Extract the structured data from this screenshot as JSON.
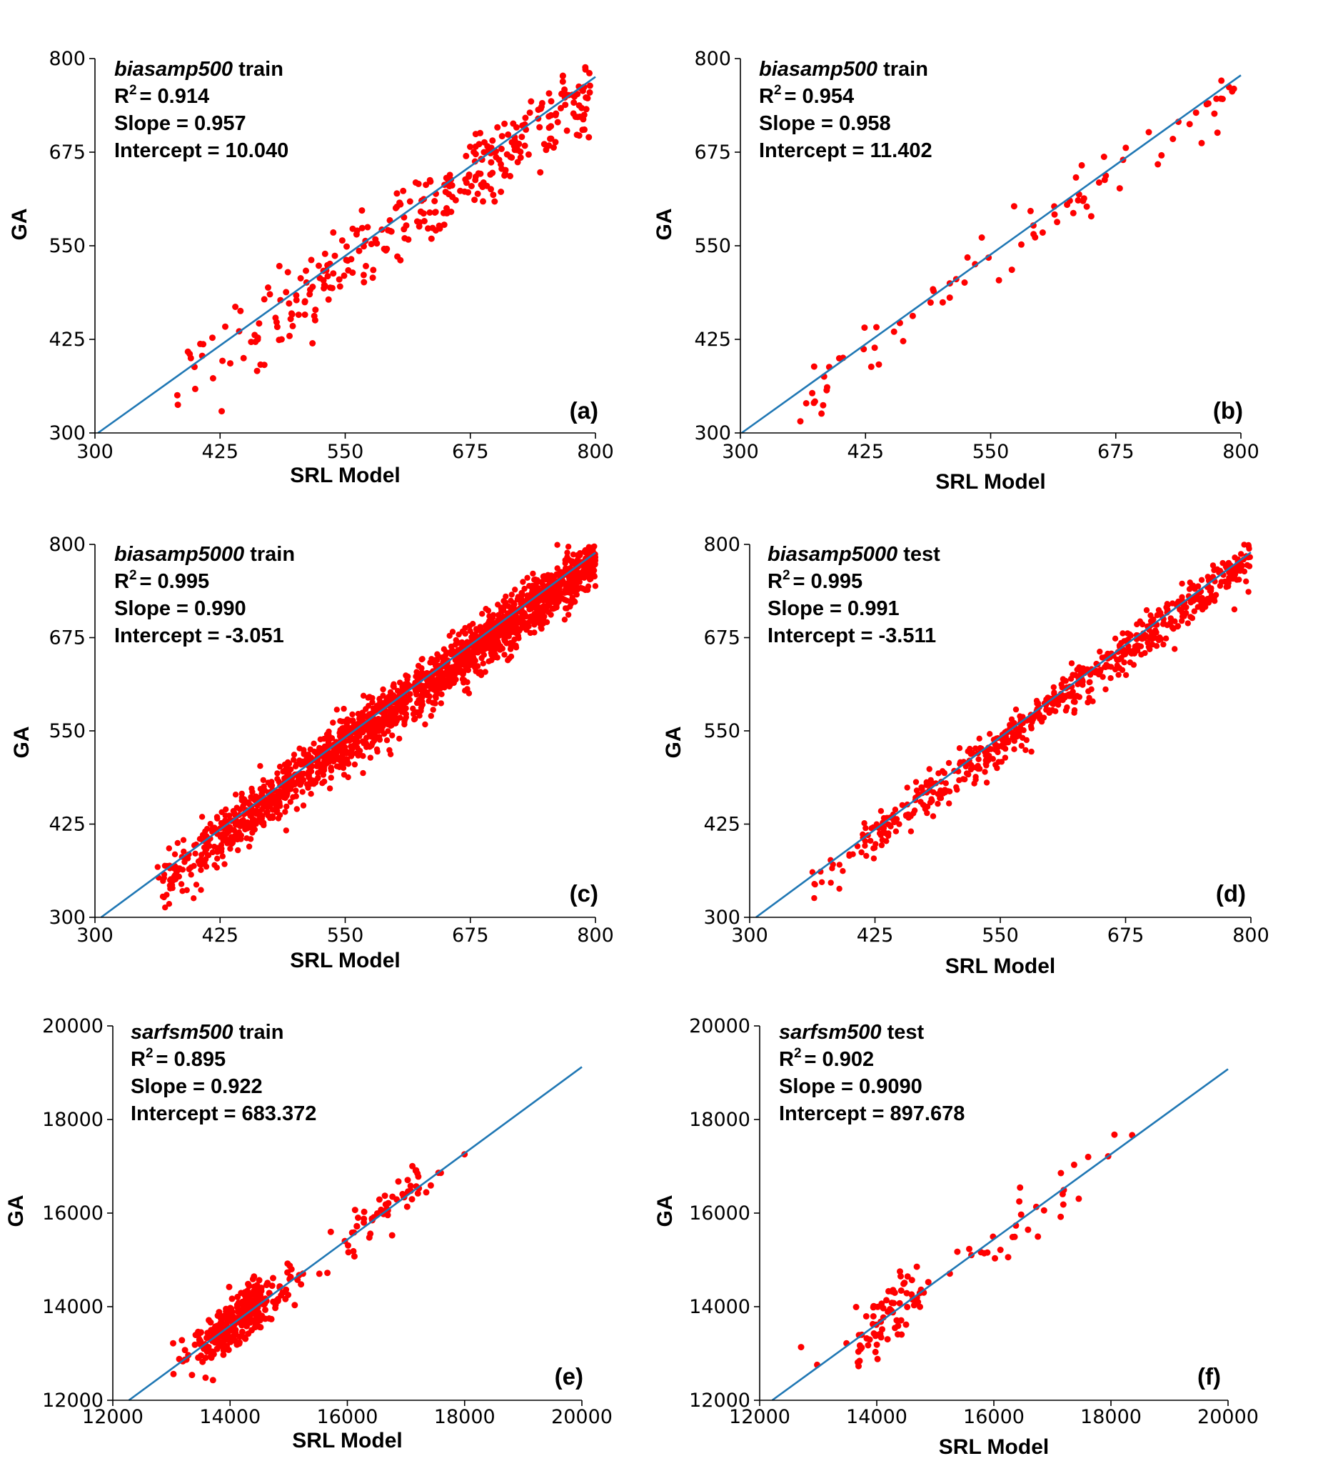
{
  "figure": {
    "point_color": "#ff0000",
    "fit_line_color": "#1f77b4",
    "axis_color": "#000000"
  },
  "chart_data": [
    {
      "panel": "(a)",
      "type": "scatter",
      "dataset": "biasamp500",
      "split": "train",
      "annotations": {
        "r2_prefix": "R",
        "r2_sup": "2",
        "r2": "= 0.914",
        "slope": "Slope = 0.957",
        "intercept": "Intercept = 10.040"
      },
      "xlabel": "SRL Model",
      "ylabel": "GA",
      "xlim": [
        300,
        800
      ],
      "ylim": [
        300,
        800
      ],
      "xticks": [
        "300",
        "425",
        "550",
        "675",
        "800"
      ],
      "yticks": [
        "300",
        "425",
        "550",
        "675",
        "800"
      ],
      "fit": {
        "slope": 0.957,
        "intercept": 10.04
      },
      "scatter": {
        "n": 320,
        "x_range": [
          380,
          795
        ],
        "noise": 22,
        "bias": -10,
        "seed": 11
      }
    },
    {
      "panel": "(b)",
      "type": "scatter",
      "dataset": "biasamp500",
      "split": "train",
      "annotations": {
        "r2_prefix": "R",
        "r2_sup": "2",
        "r2": "= 0.954",
        "slope": "Slope = 0.958",
        "intercept": "Intercept = 11.402"
      },
      "xlabel": "SRL Model",
      "ylabel": "GA",
      "xlim": [
        300,
        800
      ],
      "ylim": [
        300,
        800
      ],
      "xticks": [
        "300",
        "425",
        "550",
        "675",
        "800"
      ],
      "yticks": [
        "300",
        "425",
        "550",
        "675",
        "800"
      ],
      "fit": {
        "slope": 0.958,
        "intercept": 11.402
      },
      "scatter": {
        "n": 85,
        "x_range": [
          355,
          795
        ],
        "noise": 20,
        "bias": -5,
        "seed": 23
      }
    },
    {
      "panel": "(c)",
      "type": "scatter",
      "dataset": "biasamp5000",
      "split": "train",
      "annotations": {
        "r2_prefix": "R",
        "r2_sup": "2",
        "r2": "= 0.995",
        "slope": "Slope = 0.990",
        "intercept": "Intercept = -3.051"
      },
      "xlabel": "SRL Model",
      "ylabel": "GA",
      "xlim": [
        300,
        800
      ],
      "ylim": [
        300,
        800
      ],
      "xticks": [
        "300",
        "425",
        "550",
        "675",
        "800"
      ],
      "yticks": [
        "300",
        "425",
        "550",
        "675",
        "800"
      ],
      "fit": {
        "slope": 0.99,
        "intercept": -3.051
      },
      "scatter": {
        "n": 1900,
        "x_range": [
          360,
          800
        ],
        "noise": 16,
        "bias": -7,
        "seed": 37
      }
    },
    {
      "panel": "(d)",
      "type": "scatter",
      "dataset": "biasamp5000",
      "split": "test",
      "annotations": {
        "r2_prefix": "R",
        "r2_sup": "2",
        "r2": "= 0.995",
        "slope": "Slope = 0.991",
        "intercept": "Intercept = -3.511"
      },
      "xlabel": "SRL Model",
      "ylabel": "GA",
      "xlim": [
        300,
        800
      ],
      "ylim": [
        300,
        800
      ],
      "xticks": [
        "300",
        "425",
        "550",
        "675",
        "800"
      ],
      "yticks": [
        "300",
        "425",
        "550",
        "675",
        "800"
      ],
      "fit": {
        "slope": 0.991,
        "intercept": -3.511
      },
      "scatter": {
        "n": 620,
        "x_range": [
          362,
          800
        ],
        "noise": 13,
        "bias": -5,
        "seed": 41
      }
    },
    {
      "panel": "(e)",
      "type": "scatter",
      "dataset": "sarfsm500",
      "split": "train",
      "annotations": {
        "r2_prefix": "R",
        "r2_sup": "2",
        "r2": "= 0.895",
        "slope": "Slope = 0.922",
        "intercept": "Intercept = 683.372"
      },
      "xlabel": "SRL Model",
      "ylabel": "GA",
      "xlim": [
        12000,
        20000
      ],
      "ylim": [
        12000,
        20000
      ],
      "xticks": [
        "12000",
        "14000",
        "16000",
        "18000",
        "20000"
      ],
      "yticks": [
        "12000",
        "14000",
        "16000",
        "18000",
        "20000"
      ],
      "fit": {
        "slope": 0.922,
        "intercept": 683.372
      },
      "scatter": {
        "n": 360,
        "clusters": [
          {
            "cx": 14150,
            "sx": 420,
            "w": 0.82
          },
          {
            "cx": 16600,
            "sx": 600,
            "w": 0.18
          }
        ],
        "noise": 260,
        "bias": 0,
        "seed": 53
      }
    },
    {
      "panel": "(f)",
      "type": "scatter",
      "dataset": "sarfsm500",
      "split": "test",
      "annotations": {
        "r2_prefix": "R",
        "r2_sup": "2",
        "r2": "= 0.902",
        "slope": "Slope = 0.9090",
        "intercept": "Intercept = 897.678"
      },
      "xlabel": "SRL Model",
      "ylabel": "GA",
      "xlim": [
        12000,
        20000
      ],
      "ylim": [
        12000,
        20000
      ],
      "xticks": [
        "12000",
        "14000",
        "16000",
        "18000",
        "20000"
      ],
      "yticks": [
        "12000",
        "14000",
        "16000",
        "18000",
        "20000"
      ],
      "fit": {
        "slope": 0.909,
        "intercept": 897.678
      },
      "scatter": {
        "n": 110,
        "clusters": [
          {
            "cx": 14200,
            "sx": 420,
            "w": 0.75
          },
          {
            "cx": 16600,
            "sx": 650,
            "w": 0.25
          }
        ],
        "noise": 280,
        "bias": 0,
        "seed": 67
      }
    }
  ]
}
